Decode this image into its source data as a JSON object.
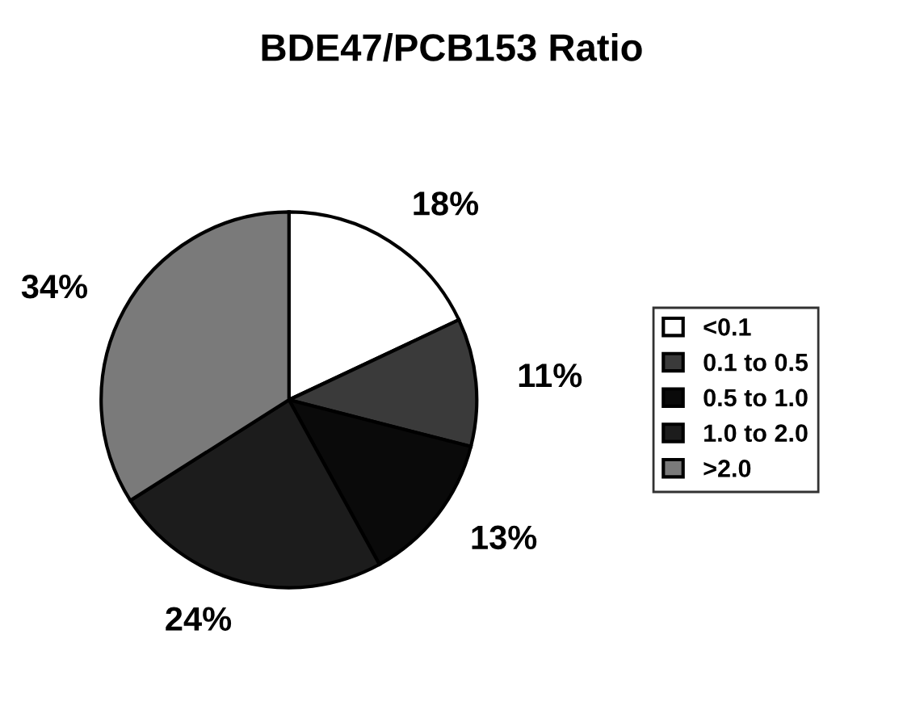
{
  "chart_data": {
    "type": "pie",
    "title": "BDE47/PCB153 Ratio",
    "categories": [
      "<0.1",
      "0.1 to 0.5",
      "0.5 to 1.0",
      "1.0 to 2.0",
      ">2.0"
    ],
    "values": [
      18,
      11,
      13,
      24,
      34
    ],
    "colors": [
      "#ffffff",
      "#3a3a3a",
      "#0a0a0a",
      "#1c1c1c",
      "#7a7a7a"
    ],
    "value_labels": [
      "18%",
      "11%",
      "13%",
      "24%",
      "34%"
    ],
    "legend": "right"
  }
}
